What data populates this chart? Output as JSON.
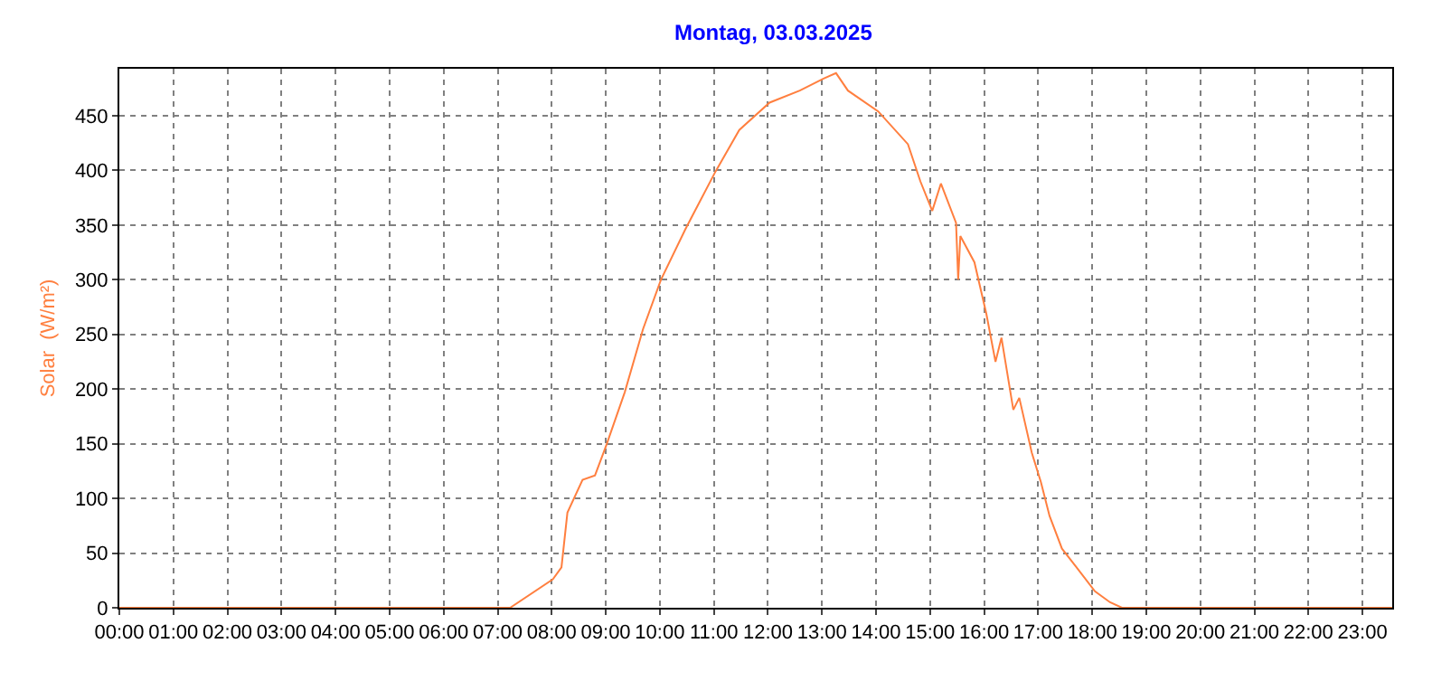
{
  "chart_data": {
    "type": "line",
    "title": "Montag, 03.03.2025",
    "ylabel": "Solar  (W/m²)",
    "grid": true,
    "marker": "none",
    "line_style": "solid",
    "xlim": [
      0,
      23.55
    ],
    "ylim": [
      0,
      493
    ],
    "xticks": [
      {
        "value": 0,
        "label": "00:00"
      },
      {
        "value": 1,
        "label": "01:00"
      },
      {
        "value": 2,
        "label": "02:00"
      },
      {
        "value": 3,
        "label": "03:00"
      },
      {
        "value": 4,
        "label": "04:00"
      },
      {
        "value": 5,
        "label": "05:00"
      },
      {
        "value": 6,
        "label": "06:00"
      },
      {
        "value": 7,
        "label": "07:00"
      },
      {
        "value": 8,
        "label": "08:00"
      },
      {
        "value": 9,
        "label": "09:00"
      },
      {
        "value": 10,
        "label": "10:00"
      },
      {
        "value": 11,
        "label": "11:00"
      },
      {
        "value": 12,
        "label": "12:00"
      },
      {
        "value": 13,
        "label": "13:00"
      },
      {
        "value": 14,
        "label": "14:00"
      },
      {
        "value": 15,
        "label": "15:00"
      },
      {
        "value": 16,
        "label": "16:00"
      },
      {
        "value": 17,
        "label": "17:00"
      },
      {
        "value": 18,
        "label": "18:00"
      },
      {
        "value": 19,
        "label": "19:00"
      },
      {
        "value": 20,
        "label": "20:00"
      },
      {
        "value": 21,
        "label": "21:00"
      },
      {
        "value": 22,
        "label": "22:00"
      },
      {
        "value": 23,
        "label": "23:00"
      }
    ],
    "yticks": [
      0,
      50,
      100,
      150,
      200,
      250,
      300,
      350,
      400,
      450
    ],
    "x": [
      0,
      7.23,
      8.02,
      8.18,
      8.29,
      8.57,
      8.8,
      9.02,
      9.35,
      9.69,
      10.02,
      10.47,
      11.03,
      11.47,
      12.03,
      12.59,
      13.03,
      13.26,
      13.48,
      14.04,
      14.59,
      14.82,
      15.04,
      15.2,
      15.48,
      15.52,
      15.56,
      15.82,
      16.04,
      16.21,
      16.32,
      16.54,
      16.65,
      16.88,
      17.05,
      17.21,
      17.44,
      17.71,
      18.05,
      18.33,
      18.55,
      23.55
    ],
    "series": [
      {
        "color": "#ff7f3f",
        "values": [
          0,
          0,
          26,
          37,
          87,
          117,
          121,
          150,
          197,
          255,
          300,
          346,
          399,
          437,
          462,
          473,
          484,
          489,
          473,
          454,
          424,
          390,
          363,
          388,
          352,
          300,
          340,
          316,
          269,
          225,
          247,
          181,
          192,
          142,
          115,
          84,
          54,
          37,
          15,
          5,
          0,
          0
        ]
      }
    ]
  }
}
